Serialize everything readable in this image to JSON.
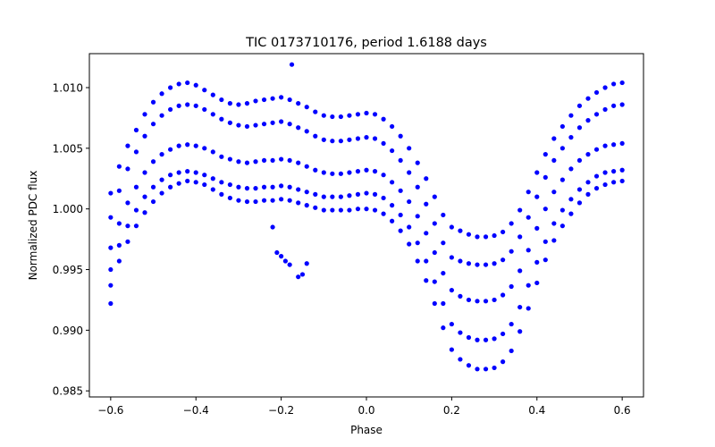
{
  "figure": {
    "background": "#ffffff"
  },
  "chart_data": {
    "type": "scatter",
    "title": "TIC 0173710176, period 1.6188 days",
    "xlabel": "Phase",
    "ylabel": "Normalized PDC flux",
    "xlim": [
      -0.65,
      0.65
    ],
    "ylim": [
      0.9845,
      1.0128
    ],
    "xticks": [
      -0.6,
      -0.4,
      -0.2,
      0.0,
      0.2,
      0.4,
      0.6
    ],
    "xtick_labels": [
      "−0.6",
      "−0.4",
      "−0.2",
      "0.0",
      "0.2",
      "0.4",
      "0.6"
    ],
    "yticks": [
      0.985,
      0.99,
      0.995,
      1.0,
      1.005,
      1.01
    ],
    "ytick_labels": [
      "0.985",
      "0.990",
      "0.995",
      "1.000",
      "1.005",
      "1.010"
    ],
    "grid": false,
    "legend": "none",
    "marker_color": "#0000ff",
    "series": [
      {
        "x": [
          -0.6,
          -0.58,
          -0.56,
          -0.54,
          -0.52,
          -0.5,
          -0.48,
          -0.46,
          -0.44,
          -0.42,
          -0.4,
          -0.38,
          -0.36,
          -0.34,
          -0.32,
          -0.3,
          -0.28,
          -0.26,
          -0.24,
          -0.22,
          -0.2,
          -0.18,
          -0.16,
          -0.14,
          -0.12,
          -0.1,
          -0.08,
          -0.06,
          -0.04,
          -0.02,
          0.0,
          0.02,
          0.04,
          0.06,
          0.08,
          0.1,
          0.12,
          0.14,
          0.16,
          0.18,
          0.2,
          0.22,
          0.24,
          0.26,
          0.28,
          0.3,
          0.32,
          0.34,
          0.36,
          0.38,
          0.4,
          0.42,
          0.44,
          0.46,
          0.48,
          0.5,
          0.52,
          0.54,
          0.56,
          0.58,
          0.6
        ],
        "y": [
          1.0013,
          1.0035,
          1.0052,
          1.0065,
          1.0078,
          1.0088,
          1.0095,
          1.01,
          1.0103,
          1.0104,
          1.0102,
          1.0098,
          1.0094,
          1.009,
          1.0087,
          1.0086,
          1.0087,
          1.0089,
          1.009,
          1.0091,
          1.0092,
          1.009,
          1.0087,
          1.0084,
          1.008,
          1.0077,
          1.0076,
          1.0076,
          1.0077,
          1.0078,
          1.0079,
          1.0078,
          1.0074,
          1.0068,
          1.006,
          1.005,
          1.0038,
          1.0025,
          1.001,
          0.9995,
          0.9985,
          0.9982,
          0.9979,
          0.9977,
          0.9977,
          0.9978,
          0.9981,
          0.9988,
          0.9999,
          1.0014,
          1.003,
          1.0045,
          1.0058,
          1.0068,
          1.0077,
          1.0085,
          1.0091,
          1.0096,
          1.01,
          1.0103,
          1.0104
        ]
      },
      {
        "x": [
          -0.6,
          -0.58,
          -0.56,
          -0.54,
          -0.52,
          -0.5,
          -0.48,
          -0.46,
          -0.44,
          -0.42,
          -0.4,
          -0.38,
          -0.36,
          -0.34,
          -0.32,
          -0.3,
          -0.28,
          -0.26,
          -0.24,
          -0.22,
          -0.2,
          -0.18,
          -0.16,
          -0.14,
          -0.12,
          -0.1,
          -0.08,
          -0.06,
          -0.04,
          -0.02,
          0.0,
          0.02,
          0.04,
          0.06,
          0.08,
          0.1,
          0.12,
          0.14,
          0.16,
          0.18,
          0.2,
          0.22,
          0.24,
          0.26,
          0.28,
          0.3,
          0.32,
          0.34,
          0.36,
          0.38,
          0.4,
          0.42,
          0.44,
          0.46,
          0.48,
          0.5,
          0.52,
          0.54,
          0.56,
          0.58,
          0.6
        ],
        "y": [
          0.9993,
          1.0015,
          1.0033,
          1.0047,
          1.006,
          1.007,
          1.0077,
          1.0082,
          1.0085,
          1.0086,
          1.0085,
          1.0082,
          1.0078,
          1.0074,
          1.0071,
          1.0069,
          1.0068,
          1.0069,
          1.007,
          1.0071,
          1.0072,
          1.007,
          1.0067,
          1.0064,
          1.006,
          1.0057,
          1.0056,
          1.0056,
          1.0057,
          1.0058,
          1.0059,
          1.0058,
          1.0054,
          1.0048,
          1.004,
          1.003,
          1.0018,
          1.0004,
          0.9988,
          0.9972,
          0.996,
          0.9957,
          0.9955,
          0.9954,
          0.9954,
          0.9955,
          0.9958,
          0.9965,
          0.9977,
          0.9993,
          1.001,
          1.0026,
          1.004,
          1.005,
          1.0059,
          1.0067,
          1.0073,
          1.0078,
          1.0082,
          1.0085,
          1.0086
        ]
      },
      {
        "x": [
          -0.6,
          -0.58,
          -0.56,
          -0.54,
          -0.52,
          -0.5,
          -0.48,
          -0.46,
          -0.44,
          -0.42,
          -0.4,
          -0.38,
          -0.36,
          -0.34,
          -0.32,
          -0.3,
          -0.28,
          -0.26,
          -0.24,
          -0.22,
          -0.2,
          -0.18,
          -0.16,
          -0.14,
          -0.12,
          -0.1,
          -0.08,
          -0.06,
          -0.04,
          -0.02,
          0.0,
          0.02,
          0.04,
          0.06,
          0.08,
          0.1,
          0.12,
          0.14,
          0.16,
          0.18,
          0.2,
          0.22,
          0.24,
          0.26,
          0.28,
          0.3,
          0.32,
          0.34,
          0.36,
          0.38,
          0.4,
          0.42,
          0.44,
          0.46,
          0.48,
          0.5,
          0.52,
          0.54,
          0.56,
          0.58,
          0.6
        ],
        "y": [
          0.9968,
          0.9988,
          1.0005,
          1.0018,
          1.003,
          1.0039,
          1.0045,
          1.0049,
          1.0052,
          1.0053,
          1.0052,
          1.005,
          1.0047,
          1.0043,
          1.0041,
          1.0039,
          1.0038,
          1.0039,
          1.004,
          1.004,
          1.0041,
          1.004,
          1.0038,
          1.0035,
          1.0032,
          1.003,
          1.0029,
          1.0029,
          1.003,
          1.0031,
          1.0032,
          1.0031,
          1.0028,
          1.0022,
          1.0015,
          1.0006,
          0.9994,
          0.998,
          0.9964,
          0.9947,
          0.9933,
          0.9928,
          0.9925,
          0.9924,
          0.9924,
          0.9925,
          0.9929,
          0.9936,
          0.9949,
          0.9966,
          0.9984,
          1.0,
          1.0014,
          1.0024,
          1.0033,
          1.004,
          1.0045,
          1.0049,
          1.0052,
          1.0053,
          1.0054
        ]
      },
      {
        "x": [
          -0.6,
          -0.58,
          -0.56,
          -0.54,
          -0.52,
          -0.5,
          -0.48,
          -0.46,
          -0.44,
          -0.42,
          -0.4,
          -0.38,
          -0.36,
          -0.34,
          -0.32,
          -0.3,
          -0.28,
          -0.26,
          -0.24,
          -0.22,
          -0.2,
          -0.18,
          -0.16,
          -0.14,
          -0.12,
          -0.1,
          -0.08,
          -0.06,
          -0.04,
          -0.02,
          0.0,
          0.02,
          0.04,
          0.06,
          0.08,
          0.1,
          0.12,
          0.14,
          0.16,
          0.18,
          0.2,
          0.22,
          0.24,
          0.26,
          0.28,
          0.3,
          0.32,
          0.34,
          0.36,
          0.38,
          0.4,
          0.42,
          0.44,
          0.46,
          0.48,
          0.5,
          0.52,
          0.54,
          0.56,
          0.58,
          0.6
        ],
        "y": [
          0.995,
          0.997,
          0.9986,
          0.9999,
          1.001,
          1.0018,
          1.0024,
          1.0028,
          1.003,
          1.0031,
          1.003,
          1.0028,
          1.0025,
          1.0022,
          1.002,
          1.0018,
          1.0017,
          1.0017,
          1.0018,
          1.0018,
          1.0019,
          1.0018,
          1.0016,
          1.0014,
          1.0012,
          1.001,
          1.001,
          1.001,
          1.0011,
          1.0012,
          1.0013,
          1.0012,
          1.0009,
          1.0003,
          0.9995,
          0.9985,
          0.9972,
          0.9957,
          0.994,
          0.9922,
          0.9905,
          0.9898,
          0.9894,
          0.9892,
          0.9892,
          0.9893,
          0.9897,
          0.9905,
          0.9919,
          0.9937,
          0.9956,
          0.9973,
          0.9988,
          0.9999,
          1.0008,
          1.0016,
          1.0022,
          1.0027,
          1.003,
          1.0031,
          1.0032
        ]
      },
      {
        "x": [
          -0.6,
          -0.58,
          -0.56,
          -0.54,
          -0.52,
          -0.5,
          -0.48,
          -0.46,
          -0.44,
          -0.42,
          -0.4,
          -0.38,
          -0.36,
          -0.34,
          -0.32,
          -0.3,
          -0.28,
          -0.26,
          -0.24,
          -0.22,
          -0.2,
          -0.18,
          -0.16,
          -0.14,
          -0.12,
          -0.1,
          -0.08,
          -0.06,
          -0.04,
          -0.02,
          0.0,
          0.02,
          0.04,
          0.06,
          0.08,
          0.1,
          0.12,
          0.14,
          0.16,
          0.18,
          0.2,
          0.22,
          0.24,
          0.26,
          0.28,
          0.3,
          0.32,
          0.34,
          0.36,
          0.38,
          0.4,
          0.42,
          0.44,
          0.46,
          0.48,
          0.5,
          0.52,
          0.54,
          0.56,
          0.58,
          0.6
        ],
        "y": [
          0.9937,
          0.9957,
          0.9973,
          0.9986,
          0.9997,
          1.0006,
          1.0013,
          1.0018,
          1.0021,
          1.0023,
          1.0022,
          1.002,
          1.0016,
          1.0012,
          1.0009,
          1.0007,
          1.0006,
          1.0006,
          1.0007,
          1.0007,
          1.0008,
          1.0007,
          1.0005,
          1.0003,
          1.0001,
          0.9999,
          0.9999,
          0.9999,
          0.9999,
          1.0,
          1.0,
          0.9999,
          0.9996,
          0.999,
          0.9982,
          0.9971,
          0.9957,
          0.9941,
          0.9922,
          0.9902,
          0.9884,
          0.9876,
          0.9871,
          0.9868,
          0.9868,
          0.9869,
          0.9874,
          0.9883,
          0.9899,
          0.9918,
          0.9939,
          0.9958,
          0.9974,
          0.9986,
          0.9996,
          1.0005,
          1.0012,
          1.0017,
          1.002,
          1.0022,
          1.0023
        ]
      },
      {
        "x": [
          -0.6,
          -0.22,
          -0.21,
          -0.2,
          -0.19,
          -0.18,
          -0.16,
          -0.15,
          -0.14,
          -0.175
        ],
        "y": [
          0.9922,
          0.9985,
          0.9964,
          0.9961,
          0.9957,
          0.9954,
          0.9944,
          0.9946,
          0.9955,
          1.0119
        ]
      }
    ]
  }
}
